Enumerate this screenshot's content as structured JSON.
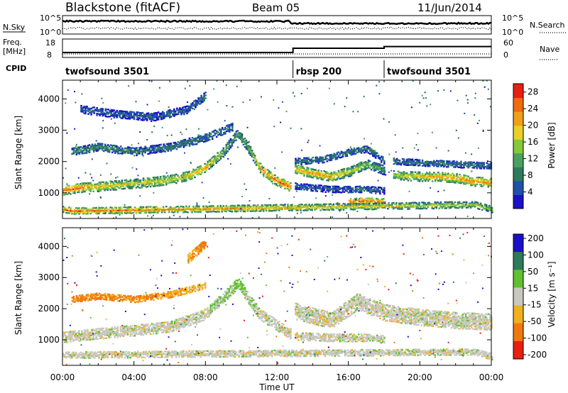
{
  "header": {
    "radar": "Blackstone (fitACF)",
    "beam": "Beam 05",
    "date": "11/Jun/2014"
  },
  "top_panels": {
    "nsky_label": "N.Sky",
    "nsearch_label": "N.Search",
    "nsky_ticks": [
      "10^5",
      "10^0"
    ],
    "nsearch_ticks": [
      "10^5",
      "10^0"
    ],
    "freq_label_1": "Freq.",
    "freq_label_2": "[MHz]",
    "freq_ticks": [
      "18",
      "8"
    ],
    "nave_label": "Nave",
    "nave_ticks": [
      "60",
      "0"
    ],
    "cpid_label": "CPID",
    "cpid_segments": [
      {
        "label": "twofsound 3501",
        "start_h": 0,
        "end_h": 12.9
      },
      {
        "label": "rbsp 200",
        "start_h": 12.9,
        "end_h": 18.0
      },
      {
        "label": "twofsound 3501",
        "start_h": 18.0,
        "end_h": 24
      }
    ]
  },
  "colorbars": {
    "power": {
      "title": "Power [dB]",
      "ticks": [
        "28",
        "24",
        "20",
        "16",
        "12",
        "8",
        "4"
      ]
    },
    "velocity": {
      "title": "Velocity [m s⁻¹]",
      "ticks": [
        "200",
        "100",
        "50",
        "15",
        "-15",
        "-50",
        "-100",
        "-200"
      ]
    }
  },
  "axes": {
    "ylabel": "Slant Range [km]",
    "xlabel": "Time UT",
    "y_ticks": [
      "1000",
      "2000",
      "3000",
      "4000"
    ],
    "x_ticks": [
      "00:00",
      "04:00",
      "08:00",
      "12:00",
      "16:00",
      "20:00",
      "00:00"
    ]
  },
  "colors": {
    "power_scale": [
      "#1a10c8",
      "#2050a8",
      "#2e7a5a",
      "#4aa060",
      "#86c838",
      "#e8d028",
      "#f0a018",
      "#f06a10",
      "#e82010"
    ],
    "velocity_scale": [
      "#1a10c8",
      "#2e7a5a",
      "#60c030",
      "#c8c8c0",
      "#f0b020",
      "#f07810",
      "#e82010"
    ],
    "ground_scatter": "#c8c8c0"
  },
  "chart_data": [
    {
      "type": "heatmap",
      "title": "Power [dB]",
      "xlabel": "Time UT",
      "ylabel": "Slant Range [km]",
      "xlim": [
        0,
        24
      ],
      "ylim": [
        180,
        4600
      ],
      "colorbar_range": [
        0,
        30
      ],
      "features": [
        {
          "points": [
            [
              0.0,
              1060,
              26
            ],
            [
              1.0,
              1150,
              24
            ],
            [
              2.0,
              1180,
              20
            ],
            [
              3.0,
              1230,
              18
            ],
            [
              4.0,
              1280,
              18
            ],
            [
              5.0,
              1330,
              18
            ],
            [
              6.0,
              1400,
              18
            ],
            [
              7.0,
              1520,
              20
            ],
            [
              8.0,
              1800,
              22
            ],
            [
              9.0,
              2300,
              14
            ],
            [
              9.8,
              2900,
              10
            ],
            [
              10.5,
              2300,
              14
            ],
            [
              11.0,
              1800,
              22
            ],
            [
              11.5,
              1550,
              24
            ],
            [
              12.0,
              1350,
              26
            ],
            [
              12.8,
              1150,
              24
            ]
          ],
          "halfwidth_km": 140
        },
        {
          "points": [
            [
              0.5,
              2300,
              10
            ],
            [
              2.0,
              2450,
              10
            ],
            [
              4.0,
              2300,
              8
            ],
            [
              6.0,
              2450,
              8
            ],
            [
              8.0,
              2750,
              8
            ],
            [
              9.5,
              3100,
              8
            ]
          ],
          "halfwidth_km": 120
        },
        {
          "points": [
            [
              1.0,
              3650,
              6
            ],
            [
              3.0,
              3500,
              6
            ],
            [
              5.0,
              3400,
              6
            ],
            [
              7.0,
              3650,
              6
            ],
            [
              8.0,
              4100,
              10
            ]
          ],
          "halfwidth_km": 120
        },
        {
          "points": [
            [
              13.0,
              1750,
              20
            ],
            [
              14.0,
              1600,
              22
            ],
            [
              15.0,
              1500,
              22
            ],
            [
              16.0,
              1650,
              18
            ],
            [
              17.0,
              1900,
              14
            ],
            [
              18.0,
              1700,
              10
            ]
          ],
          "halfwidth_km": 140
        },
        {
          "points": [
            [
              13.0,
              2000,
              8
            ],
            [
              14.5,
              2050,
              8
            ],
            [
              16.0,
              2300,
              8
            ],
            [
              17.0,
              2400,
              8
            ],
            [
              18.0,
              2000,
              6
            ]
          ],
          "halfwidth_km": 110
        },
        {
          "points": [
            [
              13.0,
              1200,
              6
            ],
            [
              15.0,
              1100,
              6
            ],
            [
              17.0,
              1100,
              8
            ],
            [
              18.0,
              1050,
              6
            ]
          ],
          "halfwidth_km": 100
        },
        {
          "points": [
            [
              16.0,
              700,
              26
            ],
            [
              17.0,
              730,
              26
            ],
            [
              18.0,
              700,
              24
            ]
          ],
          "halfwidth_km": 100
        },
        {
          "points": [
            [
              18.5,
              1550,
              16
            ],
            [
              20.0,
              1500,
              20
            ],
            [
              21.0,
              1500,
              22
            ],
            [
              22.0,
              1450,
              22
            ],
            [
              23.0,
              1350,
              24
            ],
            [
              24.0,
              1300,
              24
            ]
          ],
          "halfwidth_km": 140
        },
        {
          "points": [
            [
              18.5,
              2000,
              8
            ],
            [
              20.0,
              1950,
              8
            ],
            [
              22.0,
              1900,
              8
            ],
            [
              24.0,
              1850,
              8
            ]
          ],
          "halfwidth_km": 100
        },
        {
          "points": [
            [
              0.0,
              450,
              24
            ],
            [
              0.5,
              400,
              26
            ],
            [
              23.0,
              600,
              16
            ],
            [
              24.0,
              450,
              16
            ]
          ],
          "halfwidth_km": 90
        }
      ]
    },
    {
      "type": "heatmap",
      "title": "Velocity [m s⁻¹]",
      "xlabel": "Time UT",
      "ylabel": "Slant Range [km]",
      "xlim": [
        0,
        24
      ],
      "ylim": [
        180,
        4600
      ],
      "colorbar_range": [
        -200,
        200
      ],
      "features": [
        {
          "points": [
            [
              0.0,
              1060,
              0
            ],
            [
              2.0,
              1180,
              0
            ],
            [
              4.0,
              1280,
              0
            ],
            [
              6.0,
              1400,
              0
            ],
            [
              8.0,
              1800,
              0
            ],
            [
              9.8,
              2800,
              30
            ],
            [
              11.0,
              1800,
              0
            ],
            [
              12.8,
              1150,
              0
            ]
          ],
          "halfwidth_km": 160
        },
        {
          "points": [
            [
              0.5,
              2300,
              -60
            ],
            [
              2.0,
              2400,
              -60
            ],
            [
              4.0,
              2300,
              -50
            ],
            [
              6.0,
              2450,
              -40
            ],
            [
              8.0,
              2750,
              -30
            ]
          ],
          "halfwidth_km": 110
        },
        {
          "points": [
            [
              7.0,
              3600,
              -40
            ],
            [
              8.0,
              4100,
              -60
            ]
          ],
          "halfwidth_km": 150
        },
        {
          "points": [
            [
              13.0,
              1900,
              0
            ],
            [
              15.0,
              1600,
              0
            ],
            [
              16.5,
              2200,
              0
            ],
            [
              18.0,
              1850,
              0
            ],
            [
              20.0,
              1700,
              0
            ],
            [
              22.0,
              1600,
              0
            ],
            [
              24.0,
              1550,
              0
            ]
          ],
          "halfwidth_km": 250
        },
        {
          "points": [
            [
              13.0,
              1100,
              0
            ],
            [
              15.0,
              1050,
              0
            ],
            [
              17.0,
              1050,
              0
            ],
            [
              18.0,
              1000,
              0
            ]
          ],
          "halfwidth_km": 120
        },
        {
          "points": [
            [
              0.0,
              500,
              0
            ],
            [
              23.0,
              600,
              0
            ],
            [
              24.0,
              450,
              0
            ]
          ],
          "halfwidth_km": 100
        }
      ]
    }
  ]
}
